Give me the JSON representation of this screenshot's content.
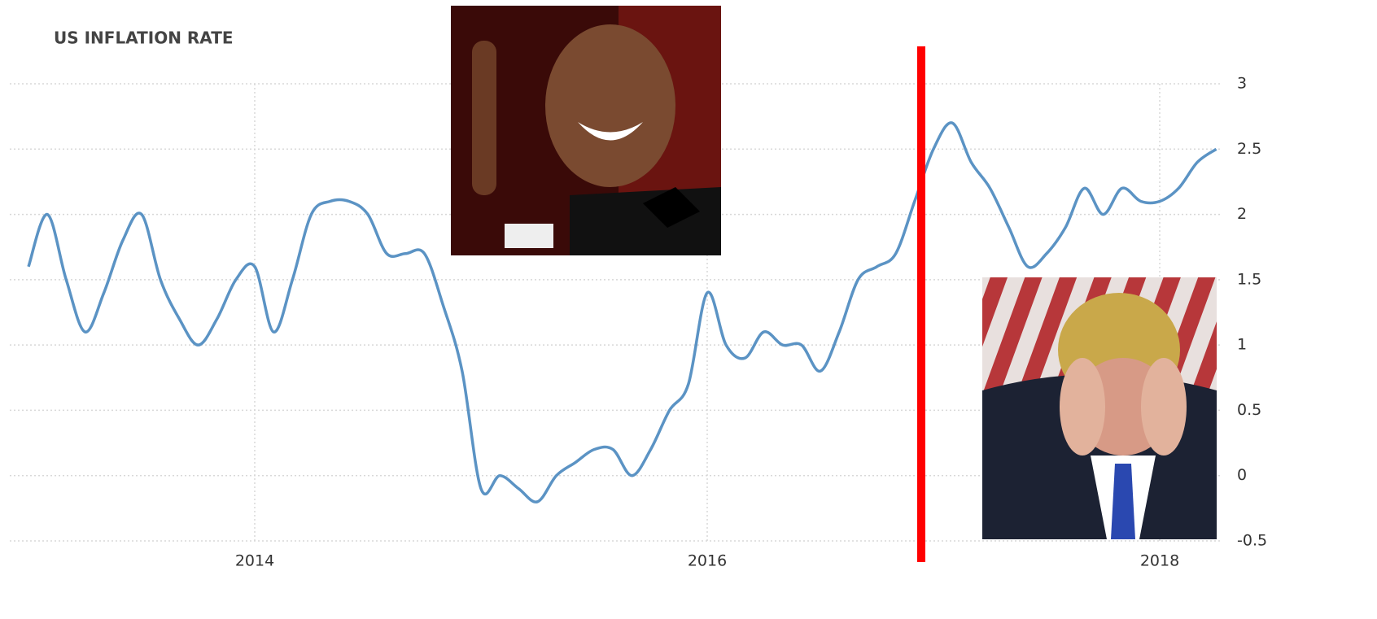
{
  "chart_data": {
    "type": "line",
    "title": "US INFLATION RATE",
    "categories": [
      null,
      null,
      null,
      null,
      null,
      null,
      null,
      null,
      null,
      null,
      null,
      null,
      "2014",
      null,
      null,
      null,
      null,
      null,
      null,
      null,
      null,
      null,
      null,
      null,
      null,
      null,
      null,
      null,
      null,
      null,
      null,
      null,
      null,
      null,
      null,
      null,
      "2016",
      null,
      null,
      null,
      null,
      null,
      null,
      null,
      null,
      null,
      null,
      null,
      null,
      null,
      null,
      null,
      null,
      null,
      null,
      null,
      null,
      null,
      null,
      null,
      "2018",
      null,
      null,
      null
    ],
    "series": [
      {
        "name": "US inflation rate",
        "color": "#5b93c4",
        "values": [
          1.6,
          2.0,
          1.5,
          1.1,
          1.4,
          1.8,
          2.0,
          1.5,
          1.2,
          1.0,
          1.2,
          1.5,
          1.6,
          1.1,
          1.5,
          2.0,
          2.1,
          2.1,
          2.0,
          1.7,
          1.7,
          1.7,
          1.3,
          0.8,
          -0.1,
          0.0,
          -0.1,
          -0.2,
          0.0,
          0.1,
          0.2,
          0.2,
          0.0,
          0.2,
          0.5,
          0.7,
          1.4,
          1.0,
          0.9,
          1.1,
          1.0,
          1.0,
          0.8,
          1.1,
          1.5,
          1.6,
          1.7,
          2.1,
          2.5,
          2.7,
          2.4,
          2.2,
          1.9,
          1.6,
          1.7,
          1.9,
          2.2,
          2.0,
          2.2,
          2.1,
          2.1,
          2.2,
          2.4,
          2.5
        ]
      }
    ],
    "ylim": [
      -0.5,
      3
    ],
    "yticks": [
      3,
      2.5,
      2,
      1.5,
      1,
      0.5,
      0,
      -0.5
    ],
    "grid": true
  }
}
